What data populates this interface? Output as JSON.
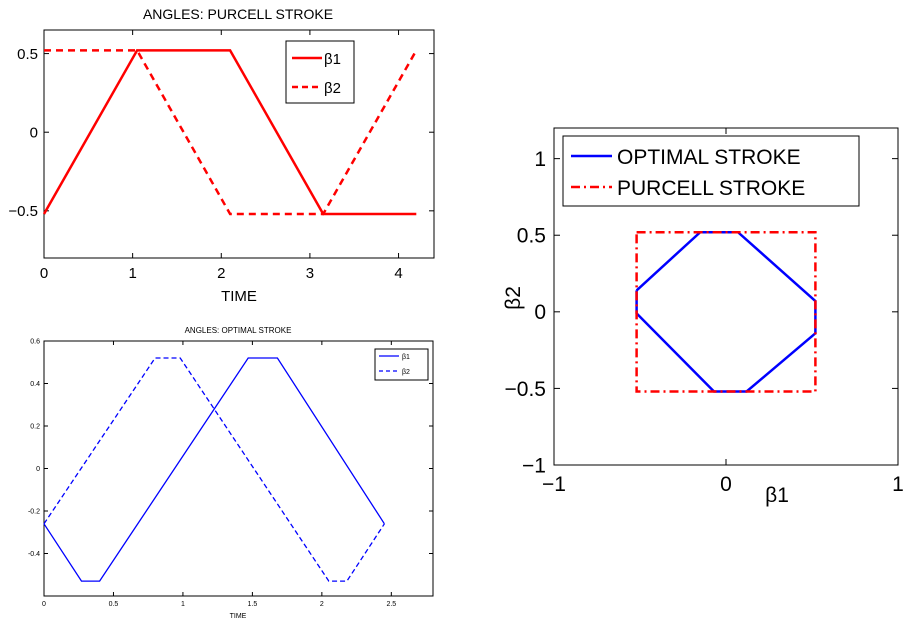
{
  "colors": {
    "red": "#ff0000",
    "blue": "#0000ff",
    "axis": "#000000"
  },
  "chart_data": [
    {
      "id": "purcell",
      "type": "line",
      "title": "ANGLES: PURCELL STROKE",
      "xlabel": "TIME",
      "ylabel": "",
      "xlim": [
        0,
        4.4
      ],
      "ylim": [
        -0.8,
        0.65
      ],
      "xticks": [
        0,
        1,
        2,
        3,
        4
      ],
      "xtick_labels": [
        "0",
        "1",
        "2",
        "3",
        "4"
      ],
      "yticks": [
        -0.5,
        0,
        0.5
      ],
      "ytick_labels": [
        "−0.5",
        "0",
        "0.5"
      ],
      "legend_position": "top-right",
      "series": [
        {
          "name": "β1",
          "style": "solid",
          "color": "#ff0000",
          "x": [
            0,
            1.05,
            2.1,
            3.15,
            4.2
          ],
          "y": [
            -0.52,
            0.52,
            0.52,
            -0.52,
            -0.52
          ]
        },
        {
          "name": "β2",
          "style": "dashed",
          "color": "#ff0000",
          "x": [
            0,
            1.05,
            2.1,
            3.15,
            4.2
          ],
          "y": [
            0.52,
            0.52,
            -0.52,
            -0.52,
            0.52
          ]
        }
      ]
    },
    {
      "id": "optimal",
      "type": "line",
      "title": "ANGLES: OPTIMAL STROKE",
      "xlabel": "TIME",
      "ylabel": "",
      "xlim": [
        0,
        2.8
      ],
      "ylim": [
        -0.6,
        0.6
      ],
      "xticks": [
        0,
        0.5,
        1,
        1.5,
        2,
        2.5
      ],
      "xtick_labels": [
        "0",
        "0.5",
        "1",
        "1.5",
        "2",
        "2.5"
      ],
      "yticks": [
        -0.4,
        -0.2,
        0,
        0.2,
        0.4,
        0.6
      ],
      "ytick_labels": [
        "-0.4",
        "-0.2",
        "0",
        "0.2",
        "0.4",
        "0.6"
      ],
      "legend_position": "top-right",
      "series": [
        {
          "name": "β1",
          "style": "solid",
          "color": "#0000ff",
          "x": [
            0,
            0.27,
            0.4,
            1.47,
            1.68,
            2.45
          ],
          "y": [
            -0.26,
            -0.53,
            -0.53,
            0.52,
            0.52,
            -0.26
          ]
        },
        {
          "name": "β2",
          "style": "dashed",
          "color": "#0000ff",
          "x": [
            0,
            0.8,
            0.98,
            2.05,
            2.18,
            2.45
          ],
          "y": [
            -0.26,
            0.52,
            0.52,
            -0.53,
            -0.53,
            -0.26
          ]
        }
      ]
    },
    {
      "id": "phase",
      "type": "line",
      "title": "",
      "xlabel": "β1",
      "ylabel": "β2",
      "xlim": [
        -1,
        1
      ],
      "ylim": [
        -1,
        1.2
      ],
      "xticks": [
        -1,
        0,
        1
      ],
      "xtick_labels": [
        "−1",
        "0",
        "1"
      ],
      "yticks": [
        -1,
        -0.5,
        0,
        0.5,
        1
      ],
      "ytick_labels": [
        "−1",
        "−0.5",
        "0",
        "0.5",
        "1"
      ],
      "legend_position": "top-left",
      "series": [
        {
          "name": "OPTIMAL STROKE",
          "style": "solid",
          "color": "#0000ff",
          "x": [
            -0.52,
            -0.15,
            0.07,
            0.52,
            0.52,
            0.12,
            -0.07,
            -0.52,
            -0.52
          ],
          "y": [
            0.14,
            0.52,
            0.52,
            0.07,
            -0.14,
            -0.52,
            -0.52,
            -0.01,
            0.14
          ]
        },
        {
          "name": "PURCELL STROKE",
          "style": "dashdot",
          "color": "#ff0000",
          "x": [
            -0.52,
            0.52,
            0.52,
            -0.52,
            -0.52
          ],
          "y": [
            0.52,
            0.52,
            -0.52,
            -0.52,
            0.52
          ]
        }
      ]
    }
  ]
}
